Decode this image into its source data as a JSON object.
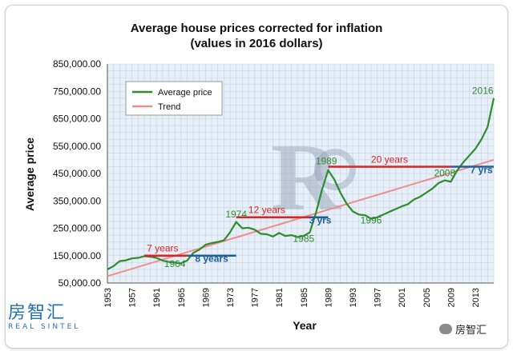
{
  "chart_data": {
    "type": "line",
    "title": "Average house prices corrected for inflation",
    "subtitle": "(values in 2016 dollars)",
    "xlabel": "Year",
    "ylabel": "Average price",
    "xlim": [
      1953,
      2016
    ],
    "ylim": [
      50000,
      850000
    ],
    "grid": true,
    "legend_position": "top-left",
    "yticks": [
      "50,000.00",
      "150,000.00",
      "250,000.00",
      "350,000.00",
      "450,000.00",
      "550,000.00",
      "650,000.00",
      "750,000.00",
      "850,000.00"
    ],
    "ytick_values": [
      50000,
      150000,
      250000,
      350000,
      450000,
      550000,
      650000,
      750000,
      850000
    ],
    "xticks": [
      "1953",
      "1957",
      "1961",
      "1965",
      "1969",
      "1973",
      "1977",
      "1981",
      "1985",
      "1989",
      "1993",
      "1997",
      "2001",
      "2005",
      "2009",
      "2013"
    ],
    "series": [
      {
        "name": "Average price",
        "color": "#2e8b2e",
        "x": [
          1953,
          1954,
          1955,
          1956,
          1957,
          1958,
          1959,
          1960,
          1961,
          1962,
          1963,
          1964,
          1965,
          1966,
          1967,
          1968,
          1969,
          1970,
          1971,
          1972,
          1973,
          1974,
          1975,
          1976,
          1977,
          1978,
          1979,
          1980,
          1981,
          1982,
          1983,
          1984,
          1985,
          1986,
          1987,
          1988,
          1989,
          1990,
          1991,
          1992,
          1993,
          1994,
          1995,
          1996,
          1997,
          1998,
          1999,
          2000,
          2001,
          2002,
          2003,
          2004,
          2005,
          2006,
          2007,
          2008,
          2009,
          2010,
          2011,
          2012,
          2013,
          2014,
          2015,
          2016
        ],
        "y": [
          100000,
          112000,
          130000,
          133000,
          140000,
          142000,
          148000,
          146000,
          142000,
          132000,
          127000,
          125000,
          122000,
          132000,
          160000,
          172000,
          190000,
          196000,
          200000,
          206000,
          235000,
          273000,
          250000,
          252000,
          245000,
          230000,
          228000,
          220000,
          233000,
          222000,
          225000,
          218000,
          222000,
          235000,
          305000,
          392000,
          462000,
          428000,
          380000,
          340000,
          312000,
          300000,
          298000,
          285000,
          290000,
          300000,
          310000,
          320000,
          330000,
          338000,
          355000,
          365000,
          380000,
          395000,
          415000,
          425000,
          420000,
          460000,
          490000,
          515000,
          540000,
          575000,
          620000,
          725000
        ]
      },
      {
        "name": "Trend",
        "color": "#f08c8c",
        "x": [
          1953,
          2016
        ],
        "y": [
          75000,
          500000
        ]
      }
    ],
    "annotations": [
      {
        "text": "7 years",
        "color": "#dd2222",
        "x_start": 1959,
        "x_end": 1966,
        "y": 150000,
        "label_x": 1962,
        "label_y": 165000
      },
      {
        "text": "8 years",
        "color": "#1f5f99",
        "x_start": 1966,
        "x_end": 1974,
        "y": 150000,
        "label_x": 1970,
        "label_y": 128000
      },
      {
        "text": "12 years",
        "color": "#dd2222",
        "x_start": 1974,
        "x_end": 1986,
        "y": 290000,
        "label_x": 1979,
        "label_y": 305000
      },
      {
        "text": "3 yrs",
        "color": "#1f5f99",
        "x_start": 1986,
        "x_end": 1989,
        "y": 290000,
        "label_x": 1987.7,
        "label_y": 268000
      },
      {
        "text": "20 years",
        "color": "#dd2222",
        "x_start": 1989,
        "x_end": 2009,
        "y": 475000,
        "label_x": 1999,
        "label_y": 490000
      },
      {
        "text": "7 yrs",
        "color": "#1f5f99",
        "x_start": 2009,
        "x_end": 2016,
        "y": 475000,
        "label_x": 2014,
        "label_y": 452000
      }
    ],
    "point_labels": [
      {
        "text": "1964",
        "x": 1964,
        "y": 108000
      },
      {
        "text": "1974",
        "x": 1974,
        "y": 290000
      },
      {
        "text": "1985",
        "x": 1985,
        "y": 200000
      },
      {
        "text": "1989",
        "x": 1988.7,
        "y": 483000
      },
      {
        "text": "1996",
        "x": 1996,
        "y": 268000
      },
      {
        "text": "2008",
        "x": 2008,
        "y": 440000
      },
      {
        "text": "2016",
        "x": 2014.2,
        "y": 740000
      }
    ],
    "point_label_color": "#2e8b2e"
  },
  "watermark": {
    "logo_text": "房智汇",
    "logo_subtext": "REAL SINTEL",
    "account_text": "房智汇"
  }
}
